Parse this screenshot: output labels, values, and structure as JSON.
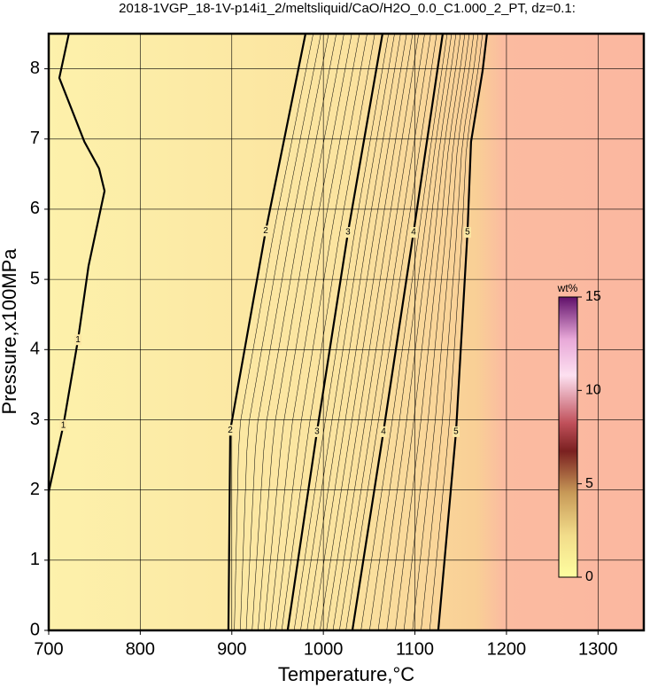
{
  "chart_data": {
    "type": "contour",
    "title": "2018-1VGP_18-1V-p14i1_2/meltsliquid/CaO/H2O_0.0_C1.000_2_PT, dz=0.1:",
    "x_label": "Temperature,°C",
    "y_label": "Pressure,x100MPa",
    "xlim": [
      700,
      1350
    ],
    "ylim": [
      0,
      8.5
    ],
    "xticks": [
      700,
      800,
      900,
      1000,
      1100,
      1200,
      1300
    ],
    "yticks": [
      0,
      1,
      2,
      3,
      4,
      5,
      6,
      7,
      8
    ],
    "grid": true,
    "contours": [
      {
        "level": 1,
        "x": [
          700,
          716,
          732,
          743.5,
          761,
          755,
          739,
          711.6,
          722
        ],
        "y": [
          1.97,
          2.92,
          4.14,
          5.19,
          6.26,
          6.58,
          6.96,
          7.87,
          8.5
        ]
      },
      {
        "level": 2,
        "x": [
          896.3,
          898.3,
          937,
          980.5
        ],
        "y": [
          0,
          2.85,
          5.69,
          8.5
        ]
      },
      {
        "level": 3,
        "x": [
          961,
          993,
          1026.9,
          1064.6
        ],
        "y": [
          0,
          2.83,
          5.67,
          8.5
        ]
      },
      {
        "level": 4,
        "x": [
          1031.7,
          1065.6,
          1098.5,
          1130.4
        ],
        "y": [
          0,
          2.83,
          5.67,
          8.5
        ]
      },
      {
        "level": 5,
        "x": [
          1125.5,
          1144.9,
          1157.4,
          1161.3,
          1173.9,
          1178.7
        ],
        "y": [
          0,
          2.83,
          5.67,
          6.96,
          7.97,
          8.5
        ]
      }
    ],
    "colorbar": {
      "label": "wt%",
      "lim": [
        0,
        15
      ],
      "ticks": [
        0,
        5,
        10,
        15
      ]
    }
  }
}
